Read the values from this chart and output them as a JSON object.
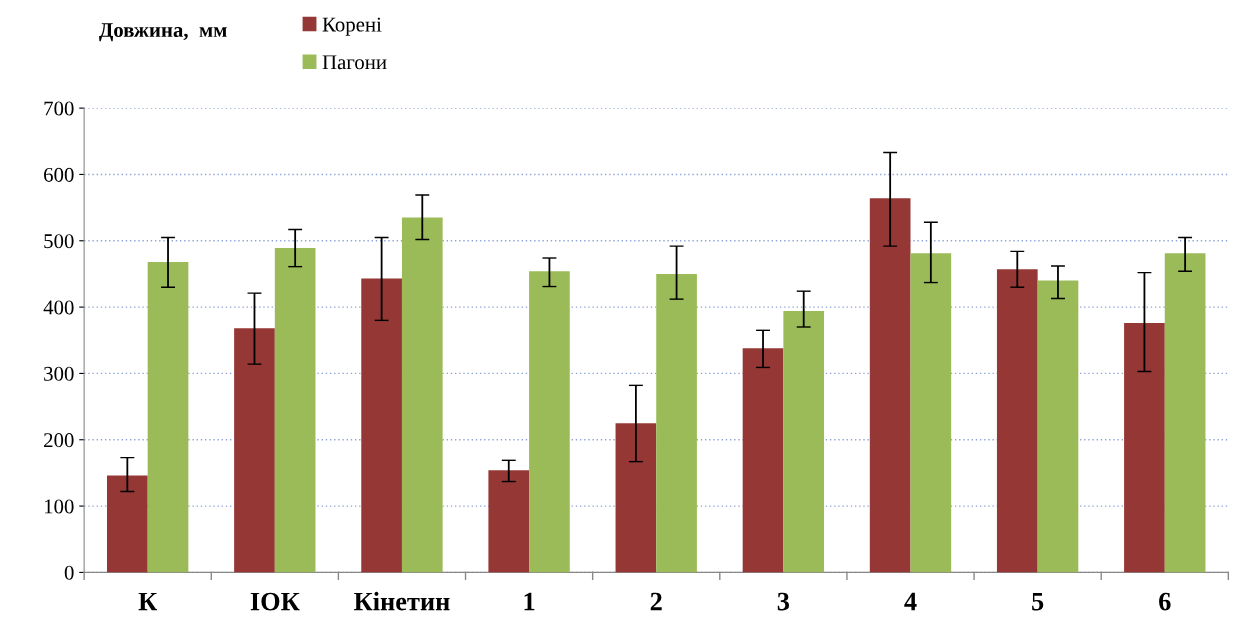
{
  "chart_data": {
    "type": "bar",
    "ylabel": "Довжина,  мм",
    "categories": [
      "К",
      "ІОК",
      "Кінетин",
      "1",
      "2",
      "3",
      "4",
      "5",
      "6"
    ],
    "series": [
      {
        "name": "Корені",
        "color": "#953735",
        "values": [
          146,
          368,
          443,
          154,
          225,
          338,
          564,
          457,
          376
        ],
        "errors": [
          [
            122,
            173
          ],
          [
            314,
            421
          ],
          [
            380,
            505
          ],
          [
            137,
            169
          ],
          [
            167,
            282
          ],
          [
            309,
            365
          ],
          [
            492,
            633
          ],
          [
            430,
            484
          ],
          [
            303,
            452
          ]
        ]
      },
      {
        "name": "Пагони",
        "color": "#9bbb59",
        "values": [
          468,
          489,
          535,
          454,
          450,
          394,
          481,
          440,
          481
        ],
        "errors": [
          [
            430,
            505
          ],
          [
            461,
            517
          ],
          [
            502,
            569
          ],
          [
            431,
            474
          ],
          [
            412,
            492
          ],
          [
            370,
            424
          ],
          [
            437,
            528
          ],
          [
            413,
            462
          ],
          [
            454,
            505
          ]
        ]
      }
    ],
    "ylim": [
      0,
      700
    ],
    "yticks": [
      0,
      100,
      200,
      300,
      400,
      500,
      600,
      700
    ],
    "grid": "y",
    "legend": "top"
  }
}
